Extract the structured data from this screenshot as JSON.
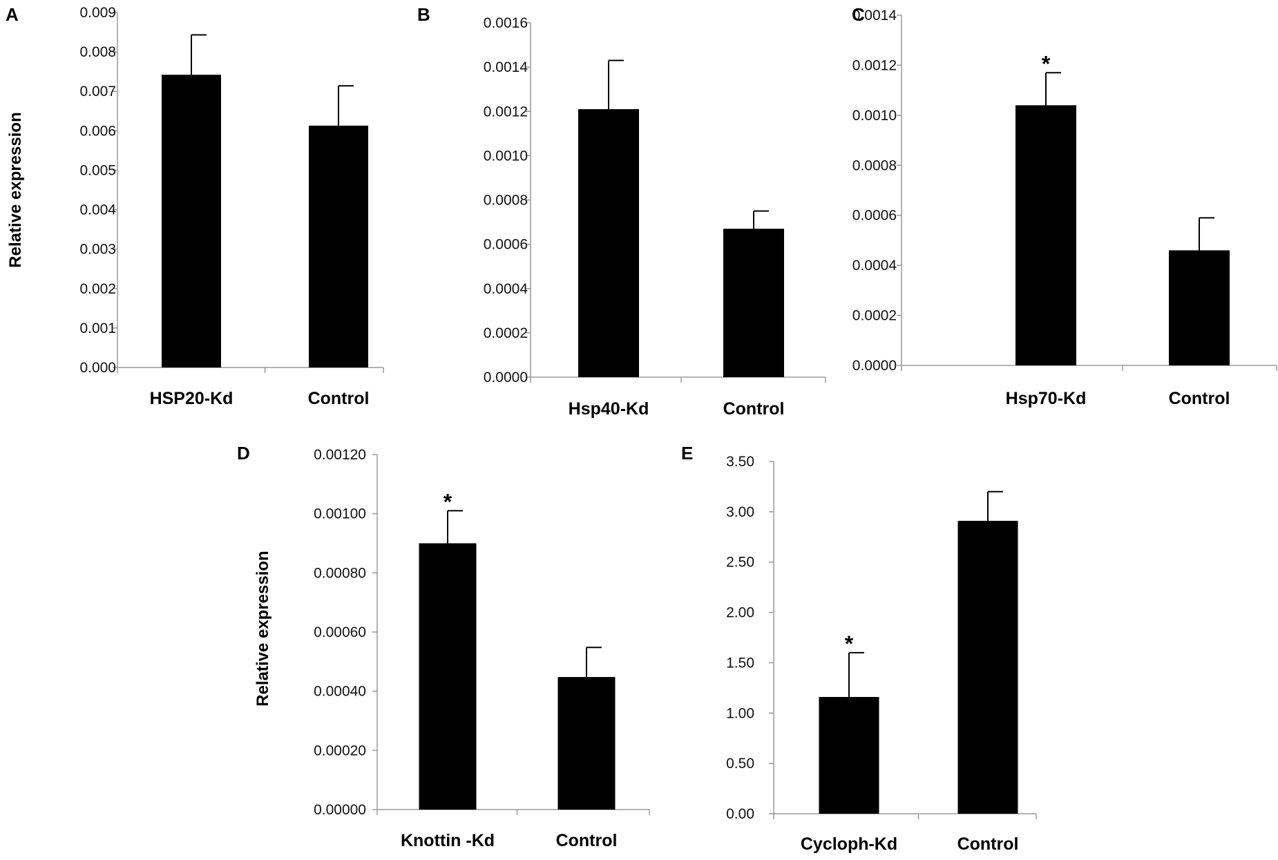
{
  "colors": {
    "bar": "#000000",
    "axis": "#9a9a9a",
    "error": "#000000"
  },
  "chart_data": [
    {
      "panel": "A",
      "type": "bar",
      "categories": [
        "HSP20-Kd",
        "Control"
      ],
      "values": [
        0.00742,
        0.00613
      ],
      "errors": [
        0.00101,
        0.00101
      ],
      "significance": [
        "",
        ""
      ],
      "ylabel": "Relative expression",
      "ylim": [
        0,
        0.009
      ],
      "yticks": [
        "0.000",
        "0.001",
        "0.002",
        "0.003",
        "0.004",
        "0.005",
        "0.006",
        "0.007",
        "0.008",
        "0.009"
      ]
    },
    {
      "panel": "B",
      "type": "bar",
      "categories": [
        "Hsp40-Kd",
        "Control"
      ],
      "values": [
        0.00121,
        0.00067
      ],
      "errors": [
        0.00022,
        8e-05
      ],
      "significance": [
        "",
        ""
      ],
      "ylabel": "",
      "ylim": [
        0,
        0.0016
      ],
      "yticks": [
        "0.0000",
        "0.0002",
        "0.0004",
        "0.0006",
        "0.0008",
        "0.0010",
        "0.0012",
        "0.0014",
        "0.0016"
      ]
    },
    {
      "panel": "C",
      "type": "bar",
      "categories": [
        "Hsp70-Kd",
        "Control"
      ],
      "values": [
        0.00104,
        0.00046
      ],
      "errors": [
        0.00013,
        0.00013
      ],
      "significance": [
        "*",
        ""
      ],
      "ylabel": "",
      "ylim": [
        0,
        0.0014
      ],
      "yticks": [
        "0.0000",
        "0.0002",
        "0.0004",
        "0.0006",
        "0.0008",
        "0.0010",
        "0.0012",
        "0.0014"
      ]
    },
    {
      "panel": "D",
      "type": "bar",
      "categories": [
        "Knottin -Kd",
        "Control"
      ],
      "values": [
        0.0009,
        0.000448
      ],
      "errors": [
        0.00011,
        0.0001
      ],
      "significance": [
        "*",
        ""
      ],
      "ylabel": "Relative expression",
      "ylim": [
        0,
        0.0012
      ],
      "yticks": [
        "0.00000",
        "0.00020",
        "0.00040",
        "0.00060",
        "0.00080",
        "0.00100",
        "0.00120"
      ]
    },
    {
      "panel": "E",
      "type": "bar",
      "categories": [
        "Cycloph-Kd",
        "Control"
      ],
      "values": [
        1.16,
        2.91
      ],
      "errors": [
        0.44,
        0.29
      ],
      "significance": [
        "*",
        ""
      ],
      "ylabel": "",
      "ylim": [
        0,
        3.5
      ],
      "yticks": [
        "0.00",
        "0.50",
        "1.00",
        "1.50",
        "2.00",
        "2.50",
        "3.00",
        "3.50"
      ]
    }
  ]
}
